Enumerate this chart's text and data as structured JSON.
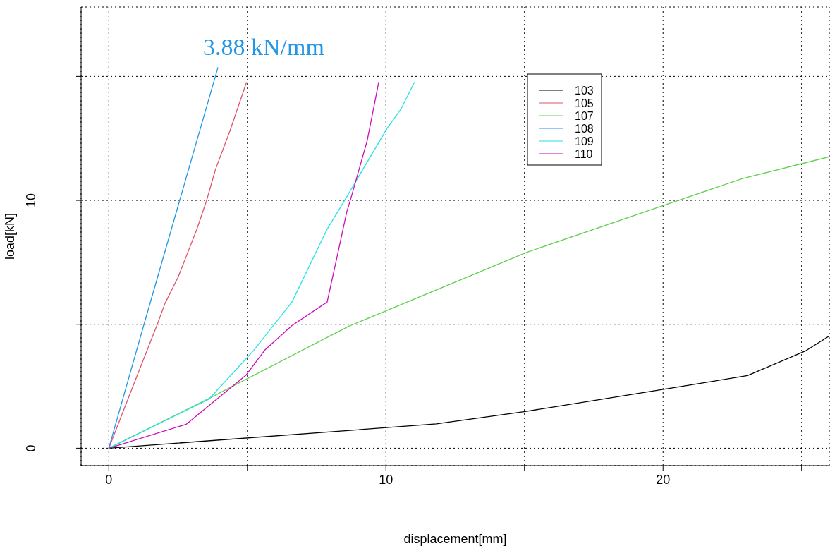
{
  "chart_data": {
    "type": "line",
    "xlabel": "displacement[mm]",
    "ylabel": "load[kN]",
    "xlim": [
      -1,
      26
    ],
    "ylim": [
      -0.7,
      17.8
    ],
    "xticks": [
      0,
      {
        "value": 5,
        "label": null
      },
      10,
      {
        "value": 15,
        "label": null
      },
      20,
      {
        "value": 25,
        "label": null
      }
    ],
    "yticks": [
      0,
      {
        "value": 5,
        "label": null
      },
      10,
      {
        "value": 15,
        "label": null
      }
    ],
    "grid": true,
    "legend": "top right",
    "marker": "none",
    "line_style": "solid",
    "annotations": [
      "3.88 kN/mm"
    ],
    "series": [
      {
        "name": "103",
        "color": "#000000",
        "x": [
          0,
          11.82,
          15.07,
          20.1,
          23.05,
          25.13,
          26
        ],
        "values": [
          0,
          0.98,
          1.49,
          2.39,
          2.93,
          3.92,
          4.53
        ]
      },
      {
        "name": "105",
        "color": "#df536b",
        "x": [
          0,
          0.72,
          1.75,
          2.03,
          2.5,
          3.18,
          3.53,
          3.85,
          4.36,
          4.97
        ],
        "values": [
          0,
          2.07,
          5,
          5.85,
          6.9,
          8.84,
          10,
          11.25,
          12.77,
          14.77
        ]
      },
      {
        "name": "107",
        "color": "#61d04f",
        "x": [
          0,
          3.6,
          8.64,
          15.07,
          20.1,
          22.87,
          26
        ],
        "values": [
          0,
          2.0,
          4.91,
          7.9,
          9.83,
          10.88,
          11.76
        ]
      },
      {
        "name": "108",
        "color": "#2297e6",
        "x": [
          0,
          1.27,
          3.94
        ],
        "values": [
          0,
          5,
          15.37
        ]
      },
      {
        "name": "109",
        "color": "#28e2e5",
        "x": [
          0,
          3.6,
          5.21,
          6.61,
          7.88,
          8.51,
          10.04,
          10.55,
          11.03
        ],
        "values": [
          0,
          1.97,
          3.92,
          5.9,
          8.84,
          10,
          12.9,
          13.7,
          14.77
        ]
      },
      {
        "name": "110",
        "color": "#cd0bbc",
        "x": [
          0,
          2.8,
          4.96,
          5.63,
          6.61,
          7.88,
          8.26,
          8.59,
          8.72,
          9.32,
          9.57,
          9.74
        ],
        "values": [
          0,
          0.97,
          2.96,
          3.96,
          4.95,
          5.9,
          7.84,
          9.55,
          10.02,
          12.39,
          13.8,
          14.77
        ]
      }
    ]
  }
}
